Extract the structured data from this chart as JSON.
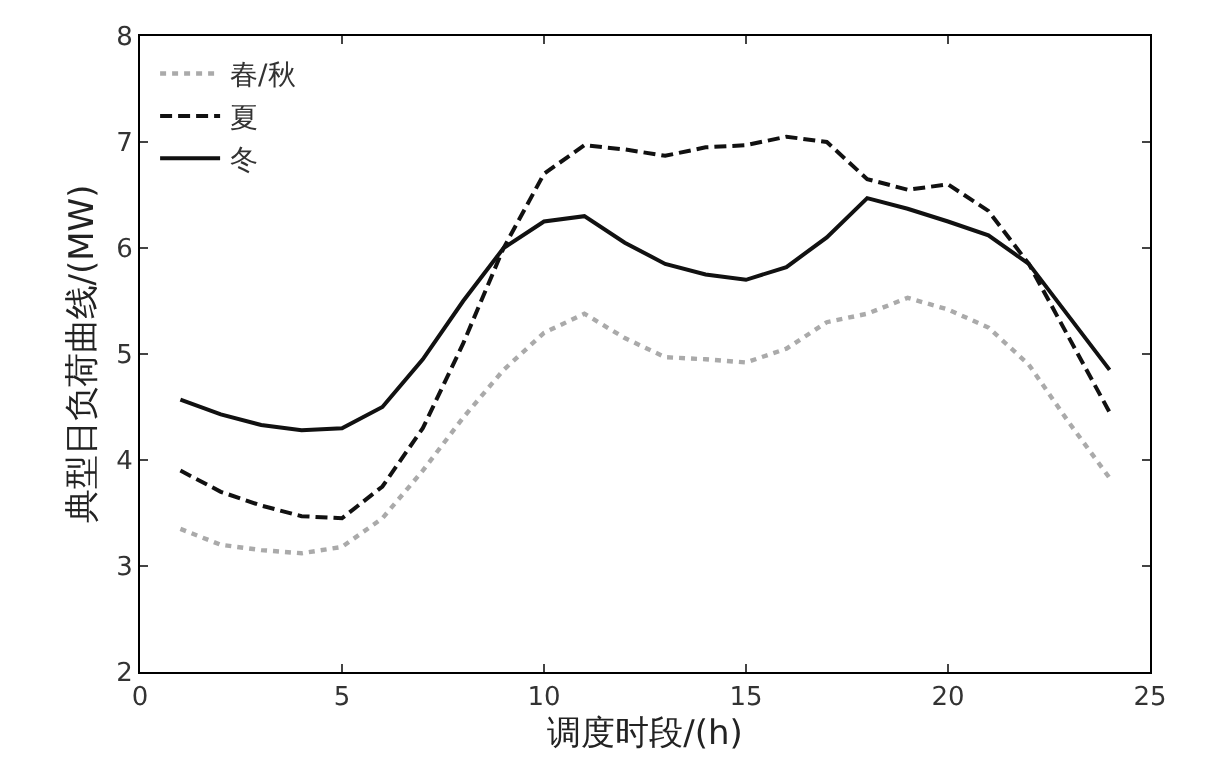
{
  "chart_data": {
    "type": "line",
    "xlabel": "调度时段/(h)",
    "ylabel": "典型日负荷曲线/(MW)",
    "x": [
      1,
      2,
      3,
      4,
      5,
      6,
      7,
      8,
      9,
      10,
      11,
      12,
      13,
      14,
      15,
      16,
      17,
      18,
      19,
      20,
      21,
      22,
      23,
      24
    ],
    "series": [
      {
        "name": "春/秋",
        "color": "#aaaaaa",
        "line_style": "dotted",
        "values": [
          3.35,
          3.2,
          3.15,
          3.12,
          3.18,
          3.45,
          3.9,
          4.4,
          4.85,
          5.2,
          5.38,
          5.15,
          4.97,
          4.95,
          4.92,
          5.05,
          5.3,
          5.38,
          5.53,
          5.42,
          5.25,
          4.9,
          4.35,
          3.83
        ]
      },
      {
        "name": "夏",
        "color": "#111111",
        "line_style": "dashed",
        "values": [
          3.9,
          3.7,
          3.57,
          3.47,
          3.45,
          3.75,
          4.3,
          5.1,
          6.0,
          6.7,
          6.97,
          6.93,
          6.87,
          6.95,
          6.97,
          7.05,
          7.0,
          6.65,
          6.55,
          6.6,
          6.35,
          5.85,
          5.15,
          4.45
        ]
      },
      {
        "name": "冬",
        "color": "#111111",
        "line_style": "solid",
        "values": [
          4.57,
          4.43,
          4.33,
          4.28,
          4.3,
          4.5,
          4.95,
          5.5,
          6.0,
          6.25,
          6.3,
          6.05,
          5.85,
          5.75,
          5.7,
          5.82,
          6.1,
          6.47,
          6.37,
          6.25,
          6.12,
          5.85,
          5.35,
          4.85
        ]
      }
    ],
    "xlim": [
      0,
      25
    ],
    "xticks": [
      0,
      5,
      10,
      15,
      20,
      25
    ],
    "ylim": [
      2,
      8
    ],
    "yticks": [
      2,
      3,
      4,
      5,
      6,
      7,
      8
    ],
    "legend": "top left",
    "marker": "none"
  }
}
